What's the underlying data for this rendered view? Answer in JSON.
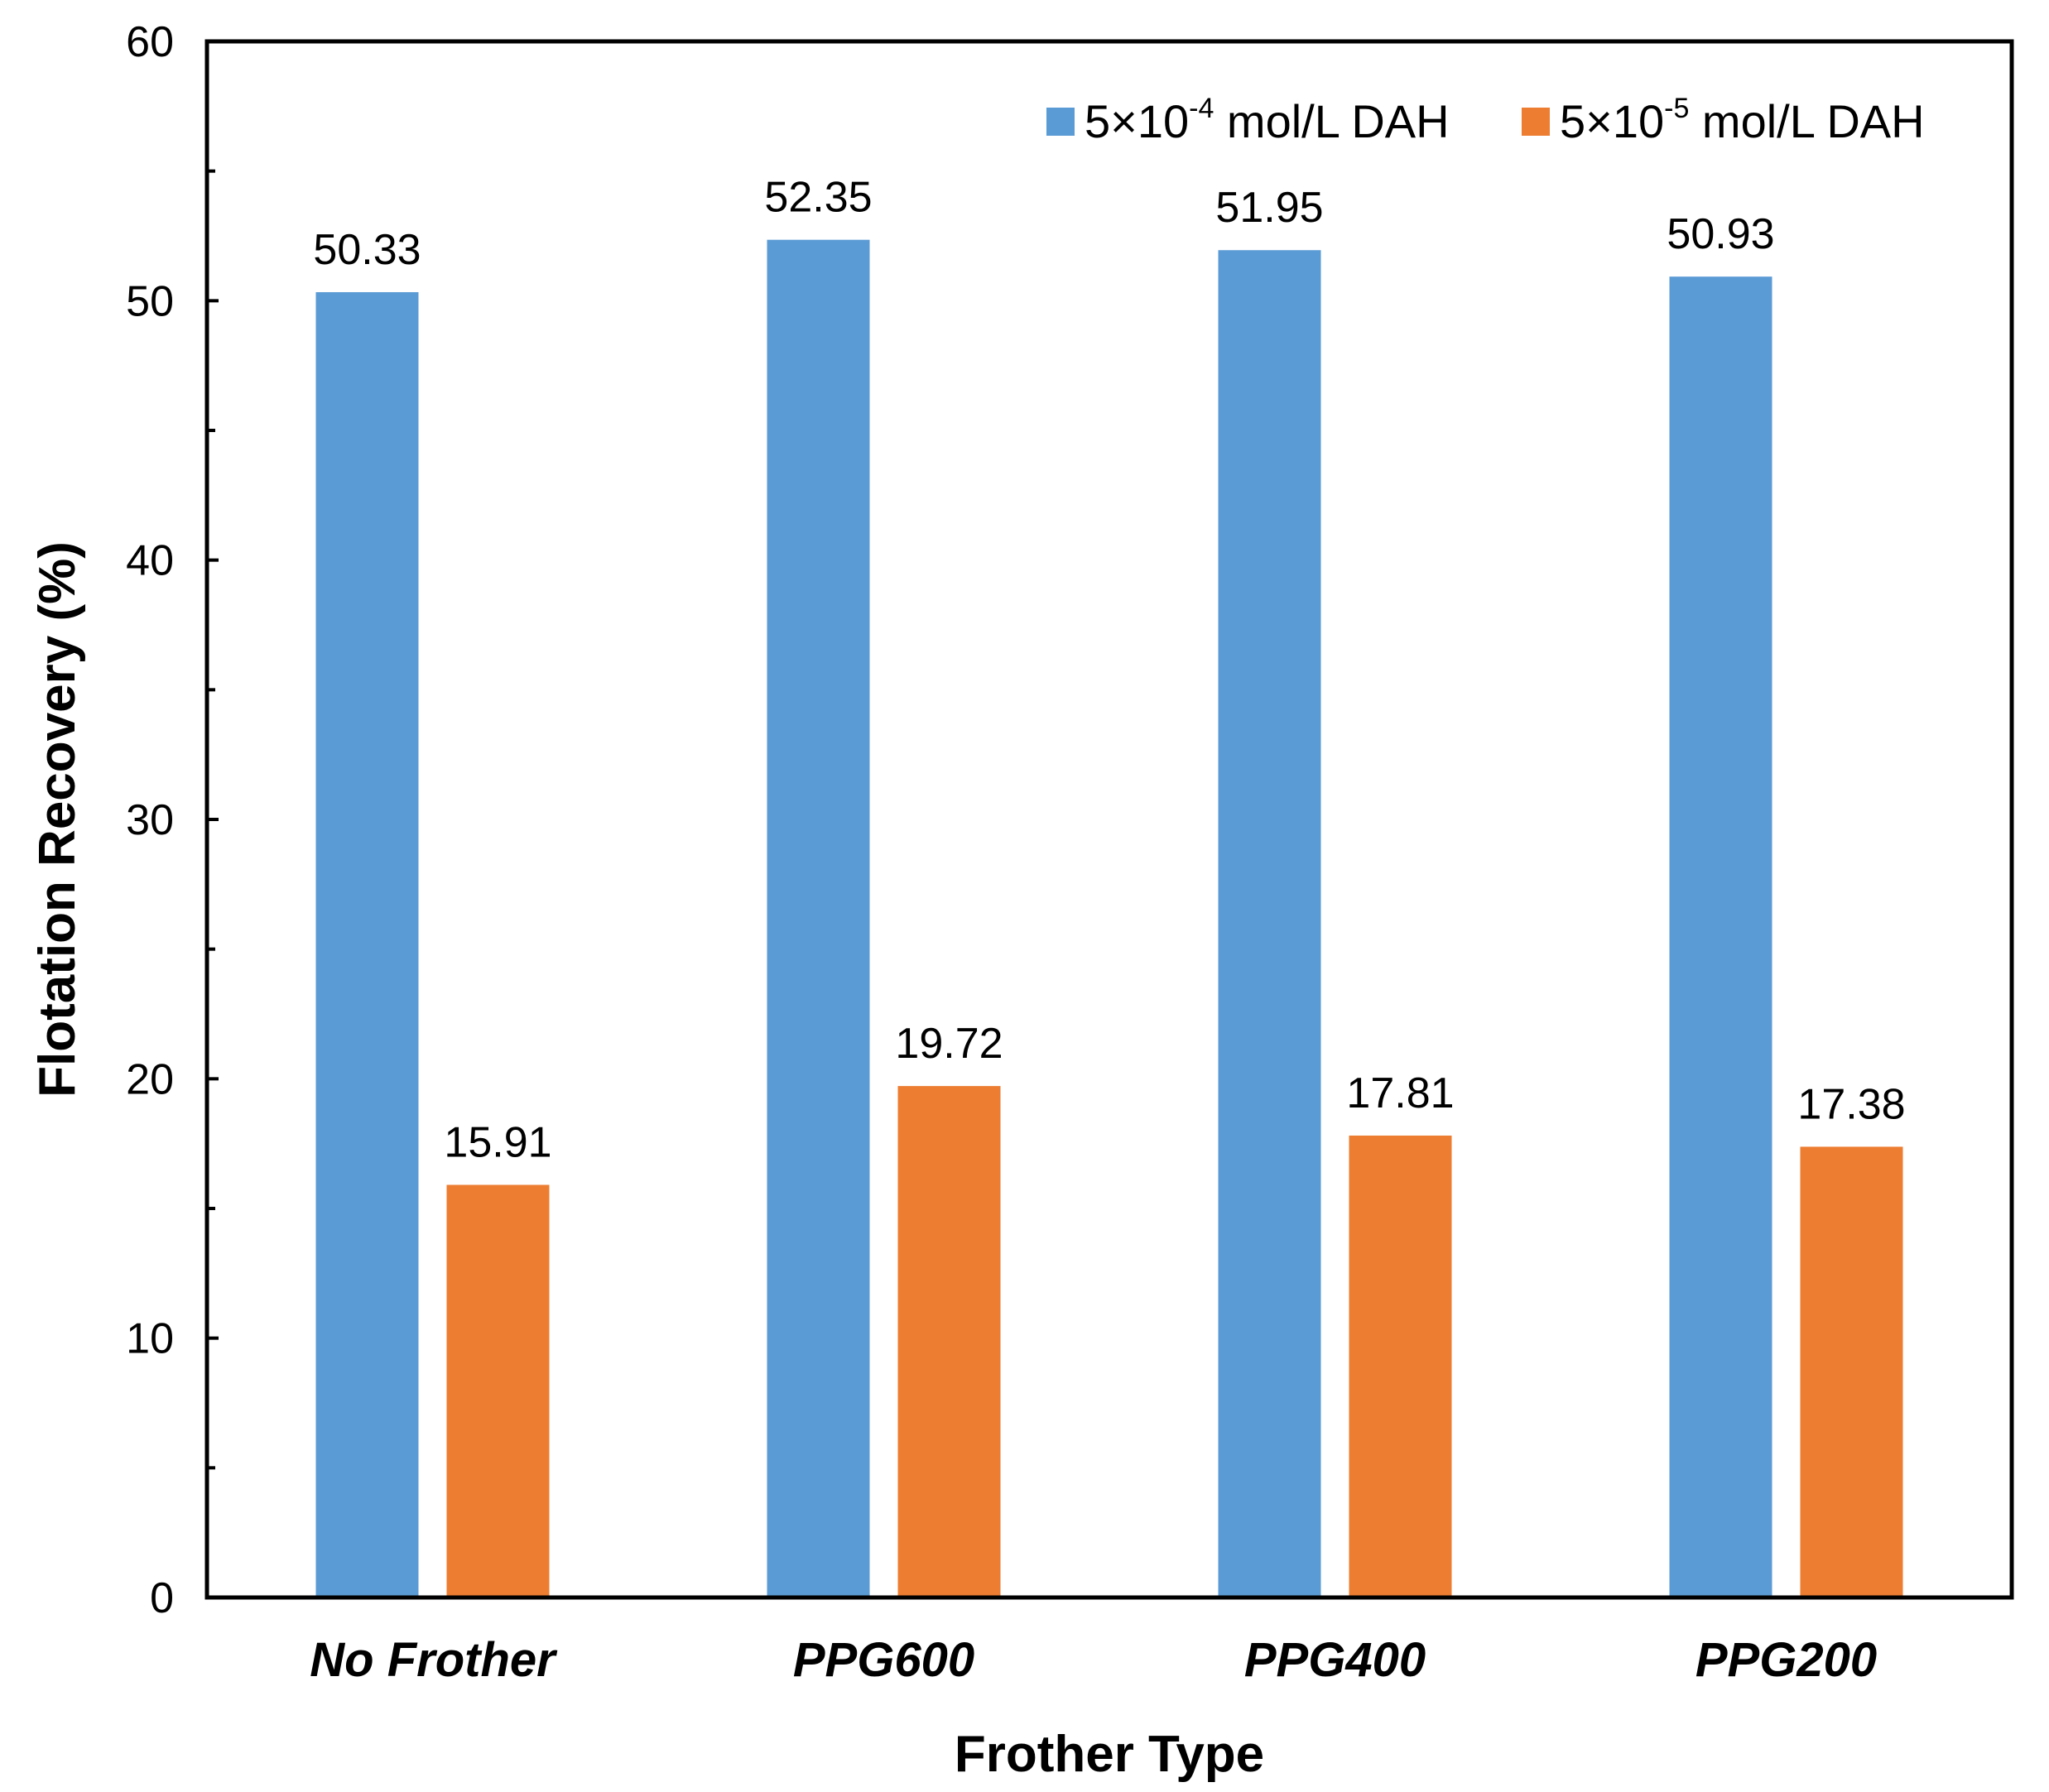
{
  "chart_data": {
    "type": "bar",
    "title": "",
    "xlabel": "Frother Type",
    "ylabel": "Flotation Recovery (%)",
    "ylim": [
      0,
      60
    ],
    "yticks": [
      0,
      10,
      20,
      30,
      40,
      50,
      60
    ],
    "categories": [
      "No Frother",
      "PPG600",
      "PPG400",
      "PPG200"
    ],
    "series": [
      {
        "name": "5×10-4 mol/L DAH",
        "legend_base": "5×10",
        "legend_exp": "-4",
        "legend_suffix": " mol/L DAH",
        "color": "#5B9BD5",
        "values": [
          50.33,
          52.35,
          51.95,
          50.93
        ]
      },
      {
        "name": "5×10-5 mol/L DAH",
        "legend_base": "5×10",
        "legend_exp": "-5",
        "legend_suffix": " mol/L DAH",
        "color": "#ED7D31",
        "values": [
          15.91,
          19.72,
          17.81,
          17.38
        ]
      }
    ],
    "legend_position": "top-right",
    "grid": false
  }
}
